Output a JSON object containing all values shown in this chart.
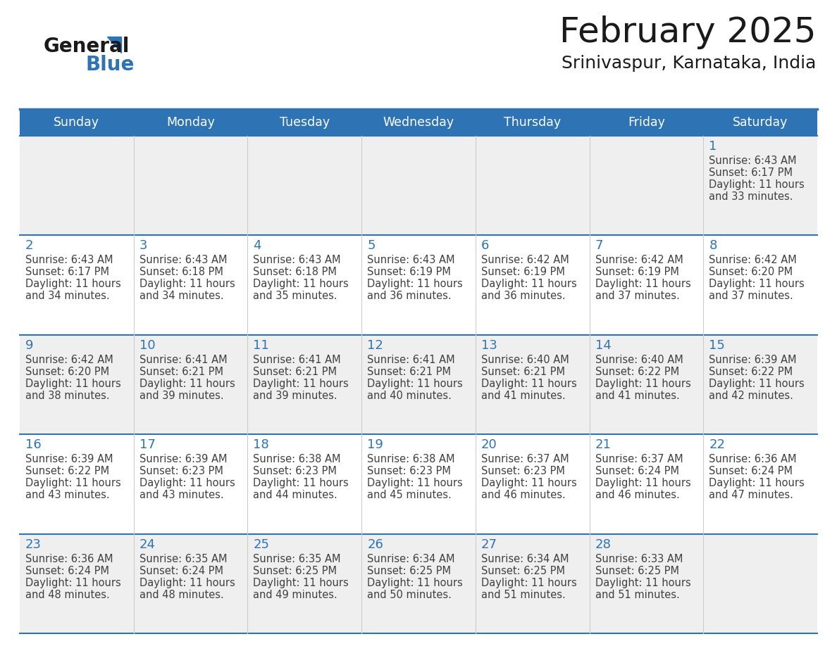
{
  "title": "February 2025",
  "subtitle": "Srinivaspur, Karnataka, India",
  "header_bg_color": "#2E74B5",
  "header_text_color": "#FFFFFF",
  "days_of_week": [
    "Sunday",
    "Monday",
    "Tuesday",
    "Wednesday",
    "Thursday",
    "Friday",
    "Saturday"
  ],
  "cell_bg_color": "#FFFFFF",
  "alt_cell_bg_color": "#EFEFEF",
  "border_color": "#2E74B5",
  "day_num_color": "#2E74B5",
  "text_color": "#404040",
  "logo_general_color": "#1A1A1A",
  "logo_blue_color": "#2E74B5",
  "calendar_data": [
    [
      null,
      null,
      null,
      null,
      null,
      null,
      1
    ],
    [
      2,
      3,
      4,
      5,
      6,
      7,
      8
    ],
    [
      9,
      10,
      11,
      12,
      13,
      14,
      15
    ],
    [
      16,
      17,
      18,
      19,
      20,
      21,
      22
    ],
    [
      23,
      24,
      25,
      26,
      27,
      28,
      null
    ]
  ],
  "sunrise_data": {
    "1": "6:43 AM",
    "2": "6:43 AM",
    "3": "6:43 AM",
    "4": "6:43 AM",
    "5": "6:43 AM",
    "6": "6:42 AM",
    "7": "6:42 AM",
    "8": "6:42 AM",
    "9": "6:42 AM",
    "10": "6:41 AM",
    "11": "6:41 AM",
    "12": "6:41 AM",
    "13": "6:40 AM",
    "14": "6:40 AM",
    "15": "6:39 AM",
    "16": "6:39 AM",
    "17": "6:39 AM",
    "18": "6:38 AM",
    "19": "6:38 AM",
    "20": "6:37 AM",
    "21": "6:37 AM",
    "22": "6:36 AM",
    "23": "6:36 AM",
    "24": "6:35 AM",
    "25": "6:35 AM",
    "26": "6:34 AM",
    "27": "6:34 AM",
    "28": "6:33 AM"
  },
  "sunset_data": {
    "1": "6:17 PM",
    "2": "6:17 PM",
    "3": "6:18 PM",
    "4": "6:18 PM",
    "5": "6:19 PM",
    "6": "6:19 PM",
    "7": "6:19 PM",
    "8": "6:20 PM",
    "9": "6:20 PM",
    "10": "6:21 PM",
    "11": "6:21 PM",
    "12": "6:21 PM",
    "13": "6:21 PM",
    "14": "6:22 PM",
    "15": "6:22 PM",
    "16": "6:22 PM",
    "17": "6:23 PM",
    "18": "6:23 PM",
    "19": "6:23 PM",
    "20": "6:23 PM",
    "21": "6:24 PM",
    "22": "6:24 PM",
    "23": "6:24 PM",
    "24": "6:24 PM",
    "25": "6:25 PM",
    "26": "6:25 PM",
    "27": "6:25 PM",
    "28": "6:25 PM"
  },
  "daylight_data": {
    "1": [
      "11 hours",
      "and 33 minutes."
    ],
    "2": [
      "11 hours",
      "and 34 minutes."
    ],
    "3": [
      "11 hours",
      "and 34 minutes."
    ],
    "4": [
      "11 hours",
      "and 35 minutes."
    ],
    "5": [
      "11 hours",
      "and 36 minutes."
    ],
    "6": [
      "11 hours",
      "and 36 minutes."
    ],
    "7": [
      "11 hours",
      "and 37 minutes."
    ],
    "8": [
      "11 hours",
      "and 37 minutes."
    ],
    "9": [
      "11 hours",
      "and 38 minutes."
    ],
    "10": [
      "11 hours",
      "and 39 minutes."
    ],
    "11": [
      "11 hours",
      "and 39 minutes."
    ],
    "12": [
      "11 hours",
      "and 40 minutes."
    ],
    "13": [
      "11 hours",
      "and 41 minutes."
    ],
    "14": [
      "11 hours",
      "and 41 minutes."
    ],
    "15": [
      "11 hours",
      "and 42 minutes."
    ],
    "16": [
      "11 hours",
      "and 43 minutes."
    ],
    "17": [
      "11 hours",
      "and 43 minutes."
    ],
    "18": [
      "11 hours",
      "and 44 minutes."
    ],
    "19": [
      "11 hours",
      "and 45 minutes."
    ],
    "20": [
      "11 hours",
      "and 46 minutes."
    ],
    "21": [
      "11 hours",
      "and 46 minutes."
    ],
    "22": [
      "11 hours",
      "and 47 minutes."
    ],
    "23": [
      "11 hours",
      "and 48 minutes."
    ],
    "24": [
      "11 hours",
      "and 48 minutes."
    ],
    "25": [
      "11 hours",
      "and 49 minutes."
    ],
    "26": [
      "11 hours",
      "and 50 minutes."
    ],
    "27": [
      "11 hours",
      "and 51 minutes."
    ],
    "28": [
      "11 hours",
      "and 51 minutes."
    ]
  }
}
